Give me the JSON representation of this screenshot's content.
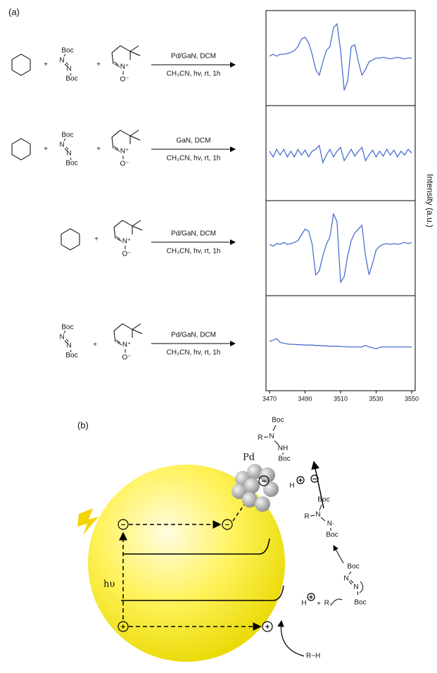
{
  "panel_a": {
    "label": "(a)",
    "plus": "+",
    "azo": {
      "boc": "Boc",
      "n": "N"
    },
    "nitrone": {
      "n": "N⁺",
      "o": "O⁻"
    },
    "reactions": [
      {
        "above": "Pd/GaN, DCM",
        "below": "CH₃CN, hv, rt, 1h"
      },
      {
        "above": "GaN, DCM",
        "below": "CH₃CN, hv, rt, 1h"
      },
      {
        "above": "Pd/GaN, DCM",
        "below": "CH₃CN, hv, rt, 1h"
      },
      {
        "above": "Pd/GaN, DCM",
        "below": "CH₃CN, hv, rt, 1h"
      }
    ]
  },
  "chart_data": {
    "type": "line",
    "y_label": "Intensity (a.u.)",
    "xlim": [
      3470,
      3550
    ],
    "xticks": [
      3470,
      3490,
      3510,
      3530,
      3550
    ],
    "ylim": [
      -1,
      1
    ],
    "x": [
      3470,
      3472,
      3474,
      3476,
      3478,
      3480,
      3482,
      3484,
      3486,
      3488,
      3490,
      3492,
      3494,
      3496,
      3498,
      3500,
      3502,
      3504,
      3506,
      3508,
      3510,
      3512,
      3514,
      3516,
      3518,
      3520,
      3522,
      3524,
      3526,
      3528,
      3530,
      3532,
      3534,
      3536,
      3538,
      3540,
      3542,
      3544,
      3546,
      3548,
      3550
    ],
    "series": [
      {
        "color": "#4a6fcf",
        "values": [
          0.05,
          0.1,
          0.05,
          0.1,
          0.1,
          0.12,
          0.15,
          0.2,
          0.3,
          0.5,
          0.55,
          0.4,
          0.1,
          -0.3,
          -0.45,
          -0.1,
          0.2,
          0.3,
          0.8,
          0.9,
          0.2,
          -0.85,
          -0.6,
          0.3,
          0.35,
          -0.1,
          -0.45,
          -0.3,
          -0.1,
          -0.05,
          0,
          0,
          0.02,
          0,
          -0.02,
          0,
          0.02,
          0,
          -0.02,
          0,
          0
        ]
      },
      {
        "color": "#4a6fcf",
        "values": [
          0.05,
          -0.1,
          0.1,
          -0.05,
          0.1,
          -0.1,
          0.05,
          -0.1,
          0.1,
          -0.05,
          0.08,
          -0.1,
          0.05,
          0.1,
          0.2,
          -0.25,
          -0.05,
          0.1,
          -0.1,
          0.05,
          0.15,
          -0.2,
          -0.05,
          0.1,
          -0.08,
          0.05,
          0.15,
          -0.2,
          -0.05,
          0.08,
          -0.1,
          0.05,
          -0.08,
          0.1,
          -0.05,
          0.08,
          -0.1,
          0.05,
          -0.05,
          0.1,
          0
        ]
      },
      {
        "color": "#4a6fcf",
        "values": [
          0.1,
          0.05,
          0.12,
          0.1,
          0.15,
          0.1,
          0.12,
          0.15,
          0.2,
          0.35,
          0.5,
          0.45,
          0.1,
          -0.7,
          -0.6,
          -0.2,
          0.1,
          0.3,
          0.9,
          0.7,
          -0.9,
          -0.75,
          -0.2,
          0.2,
          0.4,
          0.5,
          0.6,
          -0.2,
          -0.7,
          -0.4,
          -0.05,
          0.05,
          0.1,
          0.12,
          0.1,
          0.12,
          0.1,
          0.12,
          0.15,
          0.12,
          0.15
        ]
      },
      {
        "color": "#4a6fcf",
        "values": [
          0.05,
          0.08,
          0.12,
          0.02,
          0,
          -0.02,
          -0.03,
          -0.03,
          -0.04,
          -0.04,
          -0.05,
          -0.05,
          -0.05,
          -0.06,
          -0.06,
          -0.07,
          -0.07,
          -0.08,
          -0.08,
          -0.08,
          -0.09,
          -0.09,
          -0.1,
          -0.1,
          -0.1,
          -0.1,
          -0.1,
          -0.06,
          -0.1,
          -0.12,
          -0.15,
          -0.11,
          -0.1,
          -0.1,
          -0.1,
          -0.1,
          -0.1,
          -0.1,
          -0.1,
          -0.1,
          -0.1
        ]
      }
    ]
  },
  "panel_b": {
    "label": "(b)",
    "metal": "Pd",
    "photon": "hυ",
    "charges": {
      "plus": "+",
      "minus": "−"
    },
    "boc": "Boc",
    "r": "R",
    "n": "N",
    "nh": "NH",
    "n_radical": "N·",
    "h": "H",
    "plus": "+",
    "r_radical": "R·",
    "substrate": "R−H"
  }
}
